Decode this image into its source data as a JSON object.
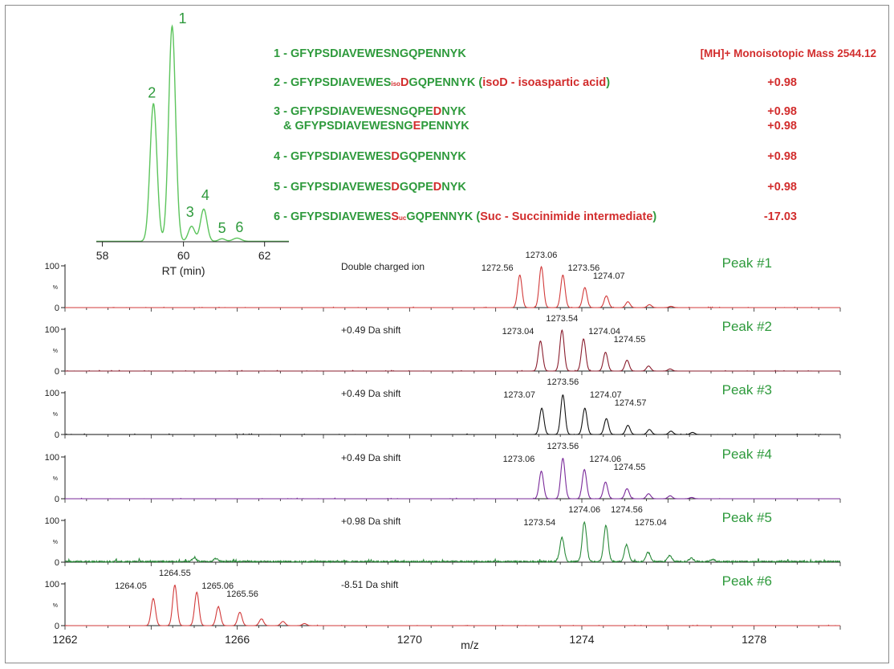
{
  "colors": {
    "peptide": "#2e9a3c",
    "modification": "#d22d2d",
    "axis": "#222222",
    "chromatogram": "#5cc45c"
  },
  "header": {
    "mass_label": "[MH]+ Monoisotopic  Mass 2544.12"
  },
  "peptides": [
    {
      "parts": [
        {
          "text": "1 - GFYPSDIAVEWESNGQPENNYK",
          "color": "green"
        }
      ],
      "shift": ""
    },
    {
      "parts": [
        {
          "text": "2 - GFYPSDIAVEWES",
          "color": "green"
        },
        {
          "text": "iso",
          "color": "red",
          "small": true
        },
        {
          "text": "D",
          "color": "red"
        },
        {
          "text": "GQPENNYK (",
          "color": "green"
        },
        {
          "text": "isoD - isoaspartic acid",
          "color": "red"
        },
        {
          "text": ")",
          "color": "green"
        }
      ],
      "shift": "+0.98"
    },
    {
      "parts": [
        {
          "text": "3 - GFYPSDIAVEWESNGQPE",
          "color": "green"
        },
        {
          "text": "D",
          "color": "red"
        },
        {
          "text": "NYK",
          "color": "green"
        }
      ],
      "shift": "+0.98"
    },
    {
      "parts": [
        {
          "text": "& GFYPSDIAVEWESNG",
          "color": "green"
        },
        {
          "text": "E",
          "color": "red"
        },
        {
          "text": "PENNYK",
          "color": "green"
        }
      ],
      "shift": "+0.98"
    },
    {
      "parts": [
        {
          "text": "4 - GFYPSDIAVEWES",
          "color": "green"
        },
        {
          "text": "D",
          "color": "red"
        },
        {
          "text": "GQPENNYK",
          "color": "green"
        }
      ],
      "shift": "+0.98"
    },
    {
      "parts": [
        {
          "text": "5 - GFYPSDIAVEWES",
          "color": "green"
        },
        {
          "text": "D",
          "color": "red"
        },
        {
          "text": "GQPE",
          "color": "green"
        },
        {
          "text": "D",
          "color": "red"
        },
        {
          "text": "NYK",
          "color": "green"
        }
      ],
      "shift": "+0.98"
    },
    {
      "parts": [
        {
          "text": "6 - GFYPSDIAVEWES",
          "color": "green"
        },
        {
          "text": "S",
          "color": "red"
        },
        {
          "text": "uc",
          "color": "red",
          "small": true
        },
        {
          "text": "GQPENNYK (",
          "color": "green"
        },
        {
          "text": "Suc - Succinimide intermediate",
          "color": "red"
        },
        {
          "text": ")",
          "color": "green"
        }
      ],
      "shift": "-17.03"
    }
  ],
  "chart_data": [
    {
      "type": "line",
      "name": "chromatogram",
      "xlabel": "RT (min)",
      "xlim": [
        57.85,
        62.6
      ],
      "xticks": [
        "58",
        "60",
        "62"
      ],
      "ylim": [
        0,
        100
      ],
      "color": "#5cc45c",
      "peaks": [
        {
          "label": "1",
          "rt": 59.72,
          "height": 100,
          "width": 0.085
        },
        {
          "label": "2",
          "rt": 59.26,
          "height": 64,
          "width": 0.085
        },
        {
          "label": "3",
          "rt": 60.2,
          "height": 7,
          "width": 0.08
        },
        {
          "label": "4",
          "rt": 60.5,
          "height": 15,
          "width": 0.08
        },
        {
          "label": "5",
          "rt": 60.95,
          "height": 1.2,
          "width": 0.08
        },
        {
          "label": "6",
          "rt": 61.32,
          "height": 1.5,
          "width": 0.1
        }
      ]
    },
    {
      "type": "line",
      "name": "mass-spectra",
      "xlabel": "m/z",
      "xlim": [
        1262,
        1280
      ],
      "xticks": [
        "1262",
        "1266",
        "1270",
        "1274",
        "1278"
      ],
      "yticks": [
        "100",
        "%",
        "0"
      ],
      "ylim": [
        0,
        100
      ],
      "panels": [
        {
          "title": "Peak #1",
          "note": "Double charged ion",
          "color": "#d23a3a",
          "peaks": [
            {
              "mz": 1272.56,
              "i": 78
            },
            {
              "mz": 1273.06,
              "i": 98
            },
            {
              "mz": 1273.56,
              "i": 78
            },
            {
              "mz": 1274.07,
              "i": 48
            },
            {
              "mz": 1274.57,
              "i": 28
            },
            {
              "mz": 1275.07,
              "i": 14
            },
            {
              "mz": 1275.57,
              "i": 7
            },
            {
              "mz": 1276.07,
              "i": 3
            }
          ],
          "labels": [
            "1272.56",
            "1273.06",
            "1273.56",
            "1274.07"
          ]
        },
        {
          "title": "Peak #2",
          "note": "+0.49 Da shift",
          "color": "#8a1e2e",
          "peaks": [
            {
              "mz": 1273.04,
              "i": 72
            },
            {
              "mz": 1273.54,
              "i": 98
            },
            {
              "mz": 1274.04,
              "i": 77
            },
            {
              "mz": 1274.55,
              "i": 45
            },
            {
              "mz": 1275.05,
              "i": 26
            },
            {
              "mz": 1275.55,
              "i": 12
            },
            {
              "mz": 1276.05,
              "i": 5
            }
          ],
          "labels": [
            "1273.04",
            "1273.54",
            "1274.04",
            "1274.55"
          ]
        },
        {
          "title": "Peak #3",
          "note": "+0.49 Da shift",
          "color": "#111111",
          "peaks": [
            {
              "mz": 1273.07,
              "i": 63
            },
            {
              "mz": 1273.56,
              "i": 95
            },
            {
              "mz": 1274.07,
              "i": 63
            },
            {
              "mz": 1274.57,
              "i": 38
            },
            {
              "mz": 1275.07,
              "i": 22
            },
            {
              "mz": 1275.57,
              "i": 12
            },
            {
              "mz": 1276.07,
              "i": 8
            },
            {
              "mz": 1276.57,
              "i": 5
            }
          ],
          "labels": [
            "1273.07",
            "1273.56",
            "1274.07",
            "1274.57"
          ]
        },
        {
          "title": "Peak #4",
          "note": "+0.49 Da shift",
          "color": "#7a2a9a",
          "peaks": [
            {
              "mz": 1273.06,
              "i": 66
            },
            {
              "mz": 1273.56,
              "i": 97
            },
            {
              "mz": 1274.06,
              "i": 70
            },
            {
              "mz": 1274.55,
              "i": 40
            },
            {
              "mz": 1275.05,
              "i": 24
            },
            {
              "mz": 1275.55,
              "i": 12
            },
            {
              "mz": 1276.05,
              "i": 7
            },
            {
              "mz": 1276.55,
              "i": 3
            }
          ],
          "labels": [
            "1273.06",
            "1273.56",
            "1274.06",
            "1274.55"
          ]
        },
        {
          "title": "Peak #5",
          "note": "+0.98 Da shift",
          "color": "#2a8a3a",
          "noisy": true,
          "peaks": [
            {
              "mz": 1273.54,
              "i": 57
            },
            {
              "mz": 1274.06,
              "i": 95
            },
            {
              "mz": 1274.56,
              "i": 86
            },
            {
              "mz": 1275.04,
              "i": 40
            },
            {
              "mz": 1275.54,
              "i": 22
            },
            {
              "mz": 1276.04,
              "i": 14
            },
            {
              "mz": 1276.54,
              "i": 8
            },
            {
              "mz": 1277.04,
              "i": 5
            },
            {
              "mz": 1265.0,
              "i": 8
            },
            {
              "mz": 1265.5,
              "i": 7
            }
          ],
          "labels": [
            "1273.54",
            "1274.06",
            "1274.56",
            "1275.04"
          ]
        },
        {
          "title": "Peak #6",
          "note": "-8.51 Da shift",
          "color": "#d23a3a",
          "peaks": [
            {
              "mz": 1264.05,
              "i": 65
            },
            {
              "mz": 1264.55,
              "i": 97
            },
            {
              "mz": 1265.06,
              "i": 80
            },
            {
              "mz": 1265.56,
              "i": 45
            },
            {
              "mz": 1266.06,
              "i": 32
            },
            {
              "mz": 1266.56,
              "i": 16
            },
            {
              "mz": 1267.06,
              "i": 10
            },
            {
              "mz": 1267.56,
              "i": 5
            }
          ],
          "labels": [
            "1264.05",
            "1264.55",
            "1265.06",
            "1265.56"
          ]
        }
      ]
    }
  ]
}
